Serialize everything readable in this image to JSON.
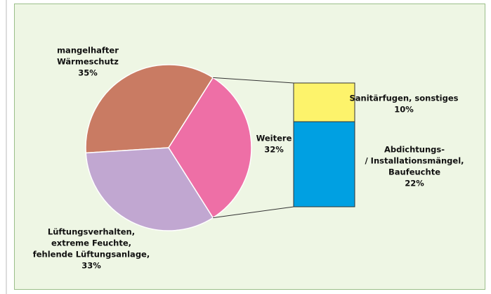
{
  "chart_data": [
    {
      "type": "pie",
      "categories": [
        [
          "mangelhafter",
          "Wärmeschutz"
        ],
        [
          "Weitere"
        ],
        [
          "Lüftungsverhalten,",
          "extreme Feuchte,",
          "fehlende Lüftungsanlage,"
        ]
      ],
      "values": [
        35,
        32,
        33
      ],
      "value_labels": [
        "35%",
        "32%",
        "33%"
      ],
      "colors": [
        "#c97b63",
        "#ee6fa6",
        "#c1a7d1"
      ]
    },
    {
      "type": "bar",
      "stacked": true,
      "categories": [
        [
          "Sanitärfugen, sonstiges"
        ],
        [
          "Abdichtungs-",
          "/ Installationsmängel,",
          "Baufeuchte"
        ]
      ],
      "values": [
        10,
        22
      ],
      "value_labels": [
        "10%",
        "22%"
      ],
      "colors": [
        "#fdf36b",
        "#00a0e2"
      ]
    }
  ]
}
